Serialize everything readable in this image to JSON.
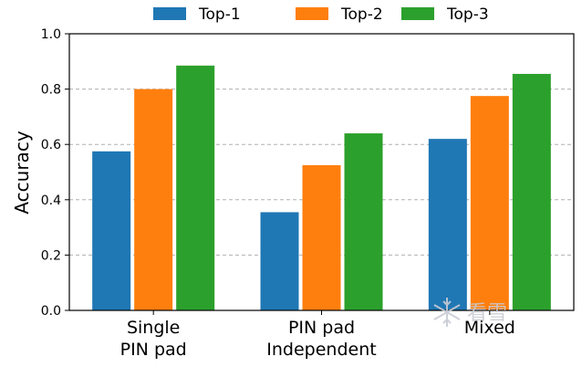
{
  "chart_data": {
    "type": "bar",
    "categories": [
      [
        "Single",
        "PIN pad"
      ],
      [
        "PIN pad",
        "Independent"
      ],
      [
        "Mixed"
      ]
    ],
    "series": [
      {
        "name": "Top-1",
        "color": "#1f77b4",
        "values": [
          0.575,
          0.355,
          0.62
        ]
      },
      {
        "name": "Top-2",
        "color": "#ff7f0e",
        "values": [
          0.8,
          0.525,
          0.775
        ]
      },
      {
        "name": "Top-3",
        "color": "#2ca02c",
        "values": [
          0.885,
          0.64,
          0.855
        ]
      }
    ],
    "ylabel": "Accuracy",
    "xlabel": "",
    "ylim": [
      0,
      1.0
    ],
    "yticks": [
      "0.0",
      "0.2",
      "0.4",
      "0.6",
      "0.8",
      "1.0"
    ],
    "grid": "horizontal dashed",
    "legend_position": "top-center"
  },
  "watermark": {
    "icon": "snowflake-icon",
    "text": "看雪"
  }
}
